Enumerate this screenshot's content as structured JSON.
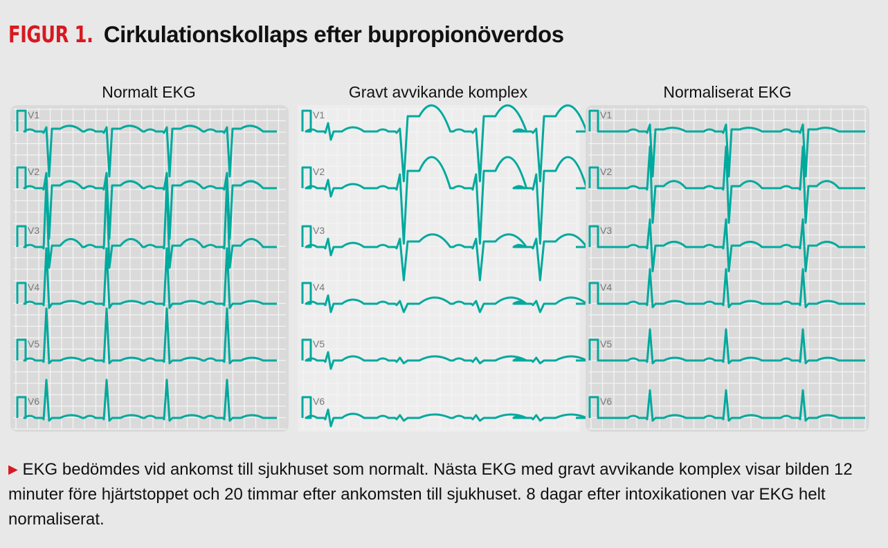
{
  "figure": {
    "label": "FIGUR 1.",
    "title": "Cirkulationskollaps efter bupropionöverdos"
  },
  "panels": [
    {
      "title": "Normalt EKG"
    },
    {
      "title": "Gravt avvikande komplex"
    },
    {
      "title": "Normaliserat EKG"
    }
  ],
  "leads": [
    "V1",
    "V2",
    "V3",
    "V4",
    "V5",
    "V6"
  ],
  "caption": {
    "marker": "▶",
    "text": "EKG bedömdes vid ankomst till sjukhuset som normalt. Nästa EKG med gravt avvikande komplex visar bilden 12 minuter före hjärtstoppet och 20 timmar efter ankomsten till sjukhuset. 8 dagar efter intoxikationen var EKG helt normaliserat."
  },
  "colors": {
    "trace": "#00a99d",
    "accent": "#d71920"
  }
}
